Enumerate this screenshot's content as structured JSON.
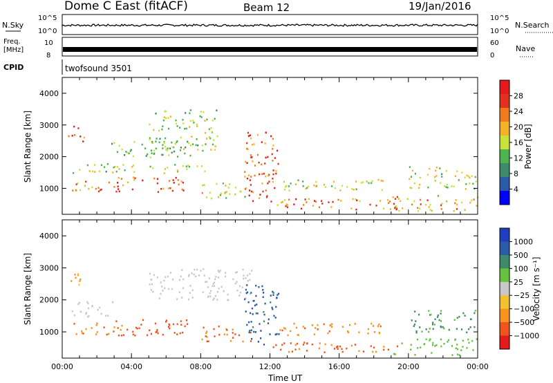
{
  "header": {
    "station": "Dome C East (fitACF)",
    "beam": "Beam 12",
    "date": "19/Jan/2016"
  },
  "panels": {
    "nsky": {
      "label": "N.Sky",
      "right_label": "N.Search",
      "left_ticks": [
        "10^5",
        "10^0"
      ],
      "right_ticks": [
        "10^5",
        "10^0"
      ]
    },
    "freq": {
      "label_line1": "Freq.",
      "label_line2": "[MHz]",
      "right_label": "Nave",
      "left_ticks": [
        "10",
        "8"
      ],
      "right_ticks": [
        "60",
        "0"
      ]
    },
    "cpid": {
      "label": "CPID",
      "value": "twofsound 3501"
    }
  },
  "colors": {
    "power_scale": [
      "#0000ff",
      "#2a5aa8",
      "#3e8a6a",
      "#4db34d",
      "#c7e33a",
      "#f6b12a",
      "#f07a1c",
      "#e0301e",
      "#e41a1c"
    ],
    "velocity_scale": [
      "#e41a1c",
      "#f0531c",
      "#f7931e",
      "#f3c12e",
      "#c8c8c8",
      "#66c23d",
      "#3e8a6a",
      "#2a5aa8",
      "#1f3fc0"
    ]
  },
  "chart_data": [
    {
      "type": "heatmap",
      "name": "power",
      "ylabel": "Slant Range [km]",
      "xlabel": "",
      "ylim": [
        180,
        4500
      ],
      "yticks": [
        "1000",
        "2000",
        "3000",
        "4000"
      ],
      "colorbar": {
        "label": "Power [dB]",
        "ticks": [
          "28",
          "24",
          "20",
          "16",
          "12",
          "8",
          "4"
        ],
        "range": [
          0,
          30
        ]
      },
      "regions": [
        {
          "t0": 0.3,
          "t1": 1.3,
          "r0": 2500,
          "r1": 3000,
          "value": 24
        },
        {
          "t0": 0.5,
          "t1": 3.0,
          "r0": 900,
          "r1": 1300,
          "value": 20
        },
        {
          "t0": 0.5,
          "t1": 8.5,
          "r0": 1500,
          "r1": 1800,
          "value": 14
        },
        {
          "t0": 2.5,
          "t1": 7.5,
          "r0": 2000,
          "r1": 2500,
          "value": 12
        },
        {
          "t0": 3.0,
          "t1": 7.0,
          "r0": 900,
          "r1": 1400,
          "value": 24
        },
        {
          "t0": 5.0,
          "t1": 9.0,
          "r0": 2200,
          "r1": 3500,
          "value": 14
        },
        {
          "t0": 8.0,
          "t1": 11.0,
          "r0": 700,
          "r1": 1200,
          "value": 16
        },
        {
          "t0": 10.5,
          "t1": 12.5,
          "r0": 600,
          "r1": 2800,
          "value": 24
        },
        {
          "t0": 12.0,
          "t1": 19.5,
          "r0": 350,
          "r1": 700,
          "value": 22
        },
        {
          "t0": 12.5,
          "t1": 18.5,
          "r0": 900,
          "r1": 1300,
          "value": 16
        },
        {
          "t0": 19.0,
          "t1": 24.0,
          "r0": 300,
          "r1": 800,
          "value": 20
        },
        {
          "t0": 20.0,
          "t1": 24.0,
          "r0": 1000,
          "r1": 1700,
          "value": 14
        }
      ]
    },
    {
      "type": "heatmap",
      "name": "velocity",
      "ylabel": "Slant Range [km]",
      "xlabel": "Time UT",
      "ylim": [
        180,
        4500
      ],
      "yticks": [
        "1000",
        "2000",
        "3000",
        "4000"
      ],
      "xticks": [
        "00:00",
        "04:00",
        "08:00",
        "12:00",
        "16:00",
        "20:00",
        "00:00"
      ],
      "xlim": [
        0,
        24
      ],
      "colorbar": {
        "label": "Velocity [m s⁻¹]",
        "ticks": [
          "1000",
          "500",
          "100",
          "25",
          "−25",
          "−100",
          "−500",
          "−1000"
        ],
        "range": [
          -1200,
          1200
        ]
      },
      "regions": [
        {
          "t0": 0.3,
          "t1": 1.3,
          "r0": 2500,
          "r1": 3000,
          "value": -60
        },
        {
          "t0": 0.5,
          "t1": 3.0,
          "r0": 1500,
          "r1": 2000,
          "value": 0
        },
        {
          "t0": 0.5,
          "t1": 3.5,
          "r0": 900,
          "r1": 1300,
          "value": -90
        },
        {
          "t0": 3.0,
          "t1": 7.5,
          "r0": 900,
          "r1": 1400,
          "value": -150
        },
        {
          "t0": 5.0,
          "t1": 11.0,
          "r0": 2000,
          "r1": 3000,
          "value": 0
        },
        {
          "t0": 8.0,
          "t1": 11.0,
          "r0": 700,
          "r1": 1200,
          "value": -100
        },
        {
          "t0": 10.5,
          "t1": 12.5,
          "r0": 600,
          "r1": 2500,
          "value": 400
        },
        {
          "t0": 12.0,
          "t1": 19.5,
          "r0": 350,
          "r1": 700,
          "value": -120
        },
        {
          "t0": 12.5,
          "t1": 18.5,
          "r0": 900,
          "r1": 1300,
          "value": -80
        },
        {
          "t0": 19.0,
          "t1": 24.0,
          "r0": 300,
          "r1": 800,
          "value": 50
        },
        {
          "t0": 20.0,
          "t1": 24.0,
          "r0": 1000,
          "r1": 1700,
          "value": 120
        }
      ]
    }
  ]
}
